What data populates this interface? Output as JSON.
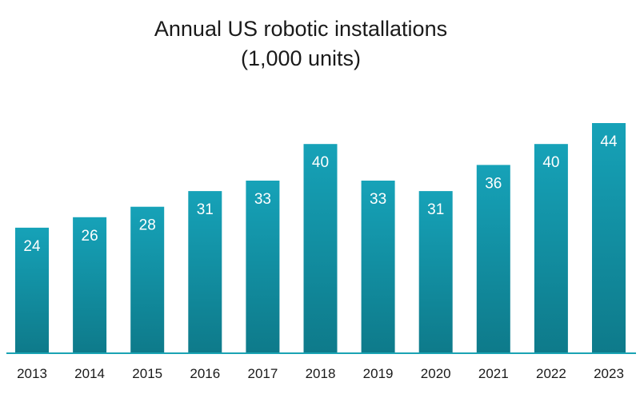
{
  "chart_data": {
    "type": "bar",
    "title": "Annual US robotic installations",
    "subtitle": "(1,000 units)",
    "categories": [
      "2013",
      "2014",
      "2015",
      "2016",
      "2017",
      "2018",
      "2019",
      "2020",
      "2021",
      "2022",
      "2023"
    ],
    "values": [
      24,
      26,
      28,
      31,
      33,
      40,
      33,
      31,
      36,
      40,
      44
    ],
    "xlabel": "",
    "ylabel": "",
    "ylim": [
      0,
      44
    ],
    "grid": false,
    "data_labels": true,
    "legend": "none"
  },
  "colors": {
    "bar_top": "#16a2b8",
    "bar_bottom": "#0e7a8a",
    "axis": "#1aa3b3",
    "label": "#ffffff",
    "text": "#1a1a1a"
  }
}
